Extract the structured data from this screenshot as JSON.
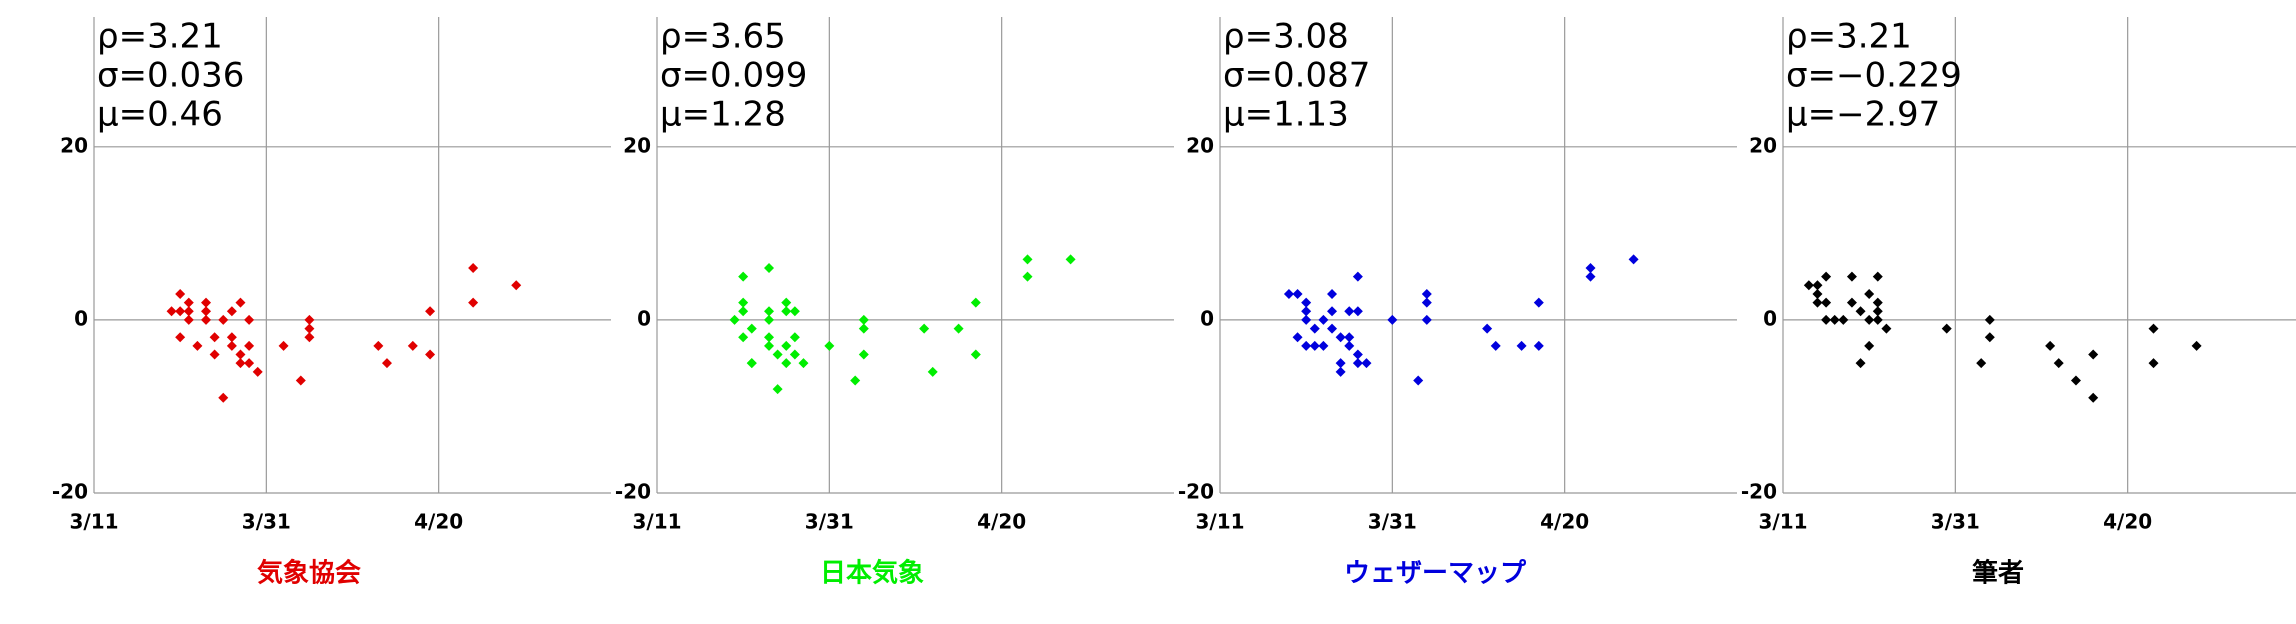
{
  "chart_data": [
    {
      "type": "scatter",
      "title": "気象協会",
      "color": "#e00000",
      "annotations": [
        "ρ=3.21",
        "σ=0.036",
        "μ=0.46"
      ],
      "x": [
        "3/20",
        "3/21",
        "3/21",
        "3/22",
        "3/22",
        "3/22",
        "3/21",
        "3/23",
        "3/24",
        "3/24",
        "3/24",
        "3/25",
        "3/25",
        "3/26",
        "3/26",
        "3/27",
        "3/27",
        "3/27",
        "3/28",
        "3/28",
        "3/28",
        "3/29",
        "3/29",
        "3/29",
        "3/30",
        "4/2",
        "4/4",
        "4/5",
        "4/5",
        "4/5",
        "4/13",
        "4/14",
        "4/17",
        "4/19",
        "4/19",
        "4/24",
        "4/24",
        "4/29"
      ],
      "values": [
        1,
        3,
        1,
        2,
        1,
        0,
        -2,
        -3,
        2,
        1,
        0,
        -2,
        -4,
        -9,
        0,
        1,
        -2,
        -3,
        -4,
        2,
        -5,
        0,
        -3,
        -5,
        -6,
        -3,
        -7,
        -2,
        0,
        -1,
        -3,
        -5,
        -3,
        -4,
        1,
        6,
        2,
        4
      ],
      "xlim": [
        "3/11",
        "5/10"
      ],
      "xticks": [
        "3/11",
        "3/31",
        "4/20"
      ],
      "ylim": [
        -20,
        35
      ],
      "yticks": [
        -20,
        0,
        20
      ],
      "grid": true
    },
    {
      "type": "scatter",
      "title": "日本気象",
      "color": "#00ee00",
      "annotations": [
        "ρ=3.65",
        "σ=0.099",
        "μ=1.28"
      ],
      "x": [
        "3/20",
        "3/21",
        "3/21",
        "3/21",
        "3/21",
        "3/22",
        "3/22",
        "3/22",
        "3/24",
        "3/24",
        "3/24",
        "3/24",
        "3/24",
        "3/25",
        "3/25",
        "3/26",
        "3/26",
        "3/26",
        "3/26",
        "3/27",
        "3/27",
        "3/27",
        "3/28",
        "3/31",
        "4/3",
        "4/4",
        "4/4",
        "4/4",
        "4/11",
        "4/12",
        "4/15",
        "4/17",
        "4/17",
        "4/23",
        "4/23",
        "4/28"
      ],
      "values": [
        0,
        5,
        2,
        1,
        -2,
        -5,
        -5,
        -1,
        6,
        1,
        -3,
        -2,
        0,
        -8,
        -4,
        2,
        1,
        -3,
        -5,
        1,
        -2,
        -4,
        -5,
        -3,
        -7,
        0,
        -1,
        -4,
        -1,
        -6,
        -1,
        2,
        -4,
        7,
        5,
        7
      ],
      "xlim": [
        "3/11",
        "5/10"
      ],
      "xticks": [
        "3/11",
        "3/31",
        "4/20"
      ],
      "ylim": [
        -20,
        35
      ],
      "yticks": [
        -20,
        0,
        20
      ],
      "grid": true
    },
    {
      "type": "scatter",
      "title": "ウェザーマップ",
      "color": "#0000dd",
      "annotations": [
        "ρ=3.08",
        "σ=0.087",
        "μ=1.13"
      ],
      "x": [
        "3/19",
        "3/20",
        "3/20",
        "3/21",
        "3/21",
        "3/21",
        "3/21",
        "3/22",
        "3/22",
        "3/23",
        "3/23",
        "3/24",
        "3/24",
        "3/24",
        "3/25",
        "3/25",
        "3/25",
        "3/26",
        "3/26",
        "3/26",
        "3/27",
        "3/27",
        "3/27",
        "3/27",
        "3/28",
        "3/31",
        "4/3",
        "4/4",
        "4/4",
        "4/4",
        "4/11",
        "4/12",
        "4/15",
        "4/17",
        "4/17",
        "4/23",
        "4/23",
        "4/28"
      ],
      "values": [
        3,
        3,
        -2,
        2,
        1,
        0,
        -3,
        -1,
        -3,
        -3,
        0,
        3,
        1,
        -1,
        -2,
        -6,
        -5,
        1,
        -2,
        -3,
        1,
        -4,
        5,
        -5,
        -5,
        0,
        -7,
        3,
        2,
        0,
        -1,
        -3,
        -3,
        2,
        -3,
        6,
        5,
        7
      ],
      "xlim": [
        "3/11",
        "5/10"
      ],
      "xticks": [
        "3/11",
        "3/31",
        "4/20"
      ],
      "ylim": [
        -20,
        35
      ],
      "yticks": [
        -20,
        0,
        20
      ],
      "grid": true
    },
    {
      "type": "scatter",
      "title": "筆者",
      "color": "#000000",
      "annotations": [
        "ρ=3.21",
        "σ=−0.229",
        "μ=−2.97"
      ],
      "x": [
        "3/14",
        "3/15",
        "3/15",
        "3/15",
        "3/16",
        "3/16",
        "3/16",
        "3/17",
        "3/18",
        "3/19",
        "3/19",
        "3/20",
        "3/20",
        "3/21",
        "3/21",
        "3/21",
        "3/22",
        "3/22",
        "3/22",
        "3/22",
        "3/23",
        "3/30",
        "4/3",
        "4/4",
        "4/4",
        "4/11",
        "4/12",
        "4/14",
        "4/16",
        "4/16",
        "4/23",
        "4/23",
        "4/28"
      ],
      "values": [
        4,
        4,
        2,
        3,
        5,
        2,
        0,
        0,
        0,
        2,
        5,
        1,
        -5,
        3,
        0,
        -3,
        5,
        2,
        1,
        0,
        -1,
        -1,
        -5,
        0,
        -2,
        -3,
        -5,
        -7,
        -4,
        -9,
        -1,
        -5,
        -3
      ],
      "xlim": [
        "3/11",
        "5/10"
      ],
      "xticks": [
        "3/11",
        "3/31",
        "4/20"
      ],
      "ylim": [
        -20,
        35
      ],
      "yticks": [
        -20,
        0,
        20
      ],
      "grid": true
    }
  ]
}
